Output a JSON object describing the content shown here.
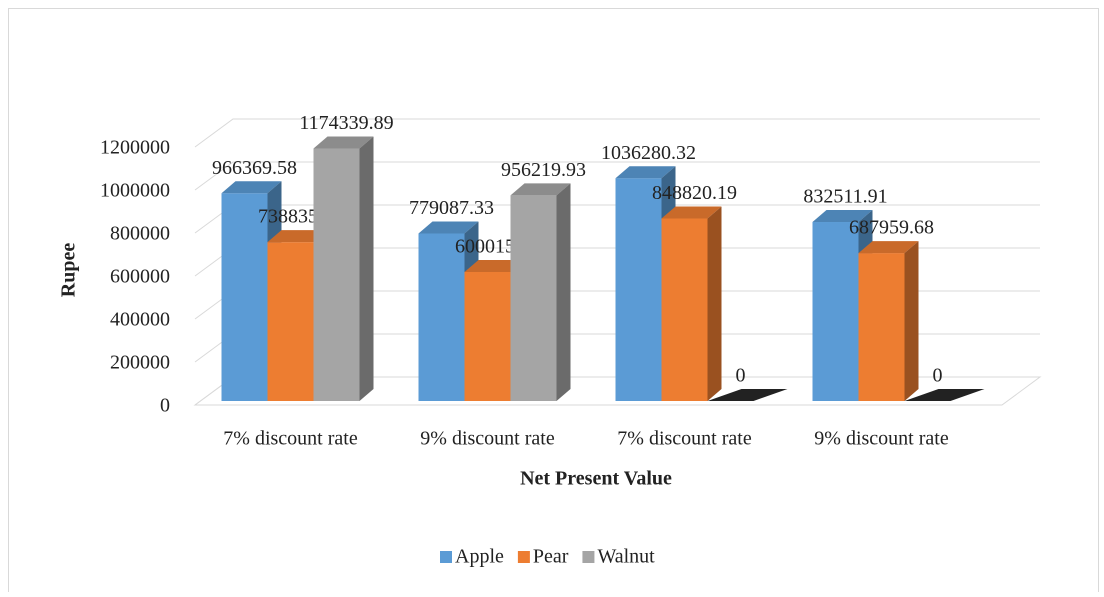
{
  "chart_data": {
    "type": "bar3d",
    "x_label": "Net Present Value",
    "y_label": "Rupee",
    "categories": [
      "7% discount rate",
      "9% discount rate",
      "7% discount rate",
      "9% discount rate"
    ],
    "series": [
      {
        "name": "Apple",
        "color": "#5b9bd5",
        "values": [
          966369.58,
          779087.33,
          1036280.32,
          832511.91
        ]
      },
      {
        "name": "Pear",
        "color": "#ed7d31",
        "values": [
          738835.13,
          600015.73,
          848820.19,
          687959.68
        ]
      },
      {
        "name": "Walnut",
        "color": "#a5a5a5",
        "values": [
          1174339.89,
          956219.93,
          0,
          0
        ]
      }
    ],
    "ylim": [
      0,
      1200000
    ],
    "yticks": [
      0,
      200000,
      400000,
      600000,
      800000,
      1000000,
      1200000
    ],
    "grid": true,
    "legend": "bottom"
  }
}
